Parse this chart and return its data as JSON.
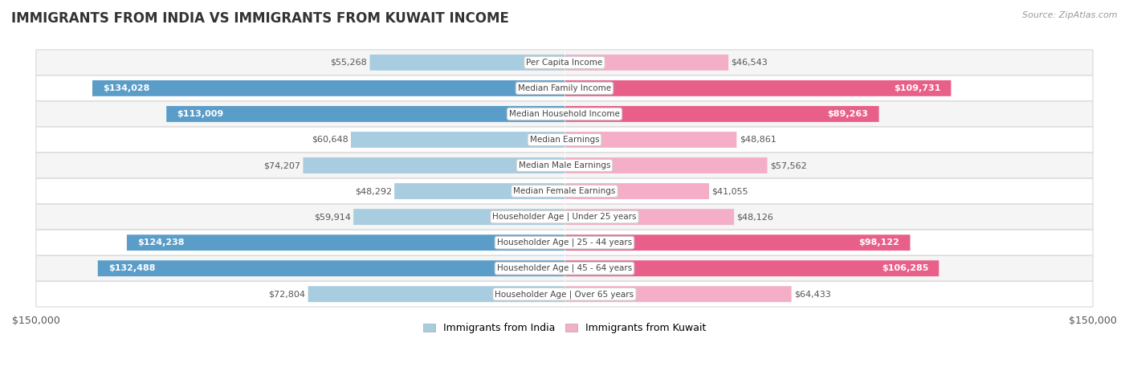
{
  "title": "IMMIGRANTS FROM INDIA VS IMMIGRANTS FROM KUWAIT INCOME",
  "source": "Source: ZipAtlas.com",
  "categories": [
    "Per Capita Income",
    "Median Family Income",
    "Median Household Income",
    "Median Earnings",
    "Median Male Earnings",
    "Median Female Earnings",
    "Householder Age | Under 25 years",
    "Householder Age | 25 - 44 years",
    "Householder Age | 45 - 64 years",
    "Householder Age | Over 65 years"
  ],
  "india_values": [
    55268,
    134028,
    113009,
    60648,
    74207,
    48292,
    59914,
    124238,
    132488,
    72804
  ],
  "kuwait_values": [
    46543,
    109731,
    89263,
    48861,
    57562,
    41055,
    48126,
    98122,
    106285,
    64433
  ],
  "india_labels": [
    "$55,268",
    "$134,028",
    "$113,009",
    "$60,648",
    "$74,207",
    "$48,292",
    "$59,914",
    "$124,238",
    "$132,488",
    "$72,804"
  ],
  "kuwait_labels": [
    "$46,543",
    "$109,731",
    "$89,263",
    "$48,861",
    "$57,562",
    "$41,055",
    "$48,126",
    "$98,122",
    "$106,285",
    "$64,433"
  ],
  "india_color_light": "#a8cce0",
  "india_color_dark": "#5b9dc9",
  "kuwait_color_light": "#f4aec8",
  "kuwait_color_dark": "#e8608a",
  "max_value": 150000,
  "legend_india": "Immigrants from India",
  "legend_kuwait": "Immigrants from Kuwait",
  "bar_height": 0.62,
  "inside_label_threshold": 80000,
  "row_bg_odd": "#f5f5f5",
  "row_bg_even": "#ffffff",
  "title_fontsize": 12,
  "source_fontsize": 8,
  "label_fontsize": 8,
  "cat_fontsize": 7.5
}
